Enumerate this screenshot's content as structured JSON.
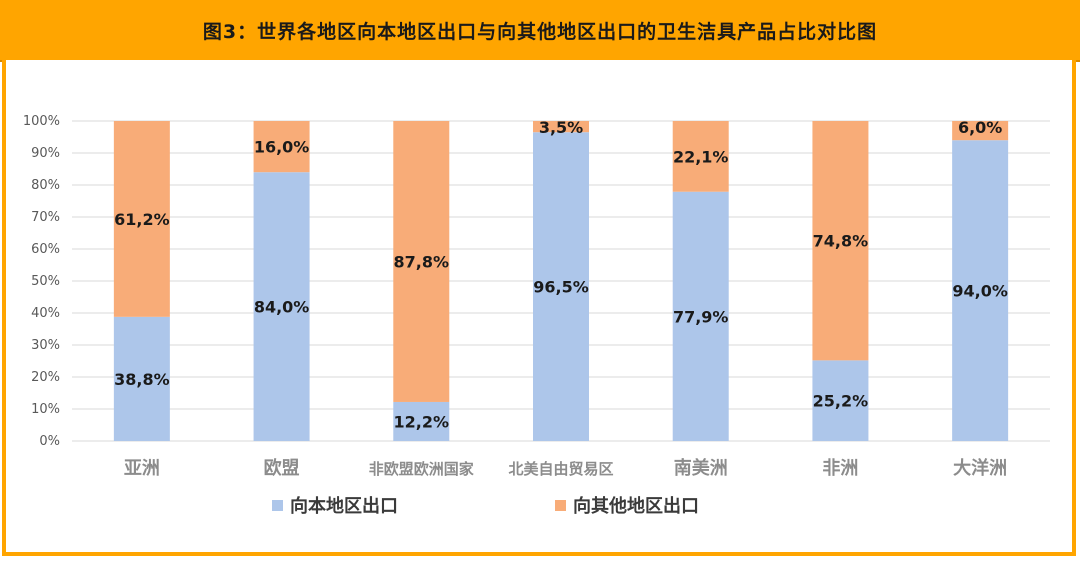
{
  "header": {
    "title": "图3：世界各地区向本地区出口与向其他地区出口的卫生洁具产品占比对比图"
  },
  "colors": {
    "accent": "#ffa500",
    "local": "#adc6ea",
    "other": "#f8ac78"
  },
  "chart_data": {
    "type": "bar",
    "stacked": true,
    "percent": true,
    "categories": [
      "亚洲",
      "欧盟",
      "非欧盟欧洲国家",
      "北美自由贸易区",
      "南美洲",
      "非洲",
      "大洋洲"
    ],
    "series": [
      {
        "name": "向本地区出口",
        "values": [
          38.8,
          84.0,
          12.2,
          96.5,
          77.9,
          25.2,
          94.0
        ],
        "labels": [
          "38,8%",
          "84,0%",
          "12,2%",
          "96,5%",
          "77,9%",
          "25,2%",
          "94,0%"
        ]
      },
      {
        "name": "向其他地区出口",
        "values": [
          61.2,
          16.0,
          87.8,
          3.5,
          22.1,
          74.8,
          6.0
        ],
        "labels": [
          "61,2%",
          "16,0%",
          "87,8%",
          "3,5%",
          "22,1%",
          "74,8%",
          "6,0%"
        ]
      }
    ],
    "yticks": [
      "0%",
      "10%",
      "20%",
      "30%",
      "40%",
      "50%",
      "60%",
      "70%",
      "80%",
      "90%",
      "100%"
    ],
    "ylim": [
      0,
      100
    ],
    "grid": true,
    "legend": "bottom"
  }
}
